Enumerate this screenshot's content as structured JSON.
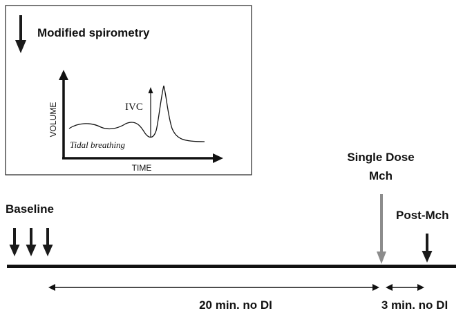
{
  "inset": {
    "legend_text": "Modified spirometry",
    "y_axis_label": "VOLUME",
    "x_axis_label": "TIME",
    "ivc_label": "IVC",
    "tidal_label": "Tidal breathing"
  },
  "timeline": {
    "baseline_label": "Baseline",
    "mch_label_line1": "Single Dose",
    "mch_label_line2": "Mch",
    "post_label": "Post-Mch",
    "interval1_label": "20 min. no DI",
    "interval2_label": "3 min. no DI"
  },
  "colors": {
    "arrow": "#1a1a1a",
    "mch_arrow": "#8c8c8c",
    "mch_text": "#666666",
    "line": "#111111"
  }
}
